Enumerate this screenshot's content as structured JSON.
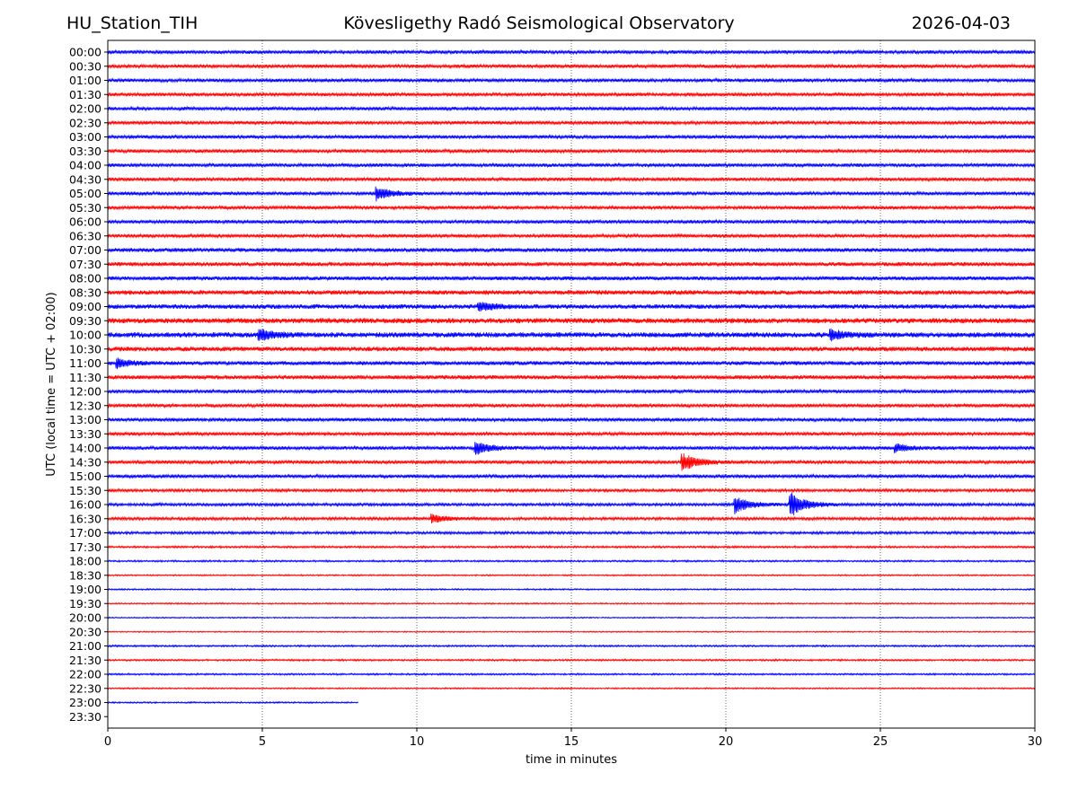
{
  "header": {
    "station": "HU_Station_TIH",
    "observatory": "Kövesligethy Radó Seismological Observatory",
    "date": "2026-04-03"
  },
  "chart_data": {
    "type": "line",
    "title": "Kövesligethy Radó Seismological Observatory",
    "xlabel": "time in minutes",
    "ylabel": "UTC (local time = UTC + 02:00)",
    "xlim": [
      0,
      30
    ],
    "xticks": [
      0,
      5,
      10,
      15,
      20,
      25,
      30
    ],
    "grid": "vertical dotted lines at x ticks",
    "series_colors": [
      "#0000ff",
      "#ff0000"
    ],
    "rows": [
      "00:00",
      "00:30",
      "01:00",
      "01:30",
      "02:00",
      "02:30",
      "03:00",
      "03:30",
      "04:00",
      "04:30",
      "05:00",
      "05:30",
      "06:00",
      "06:30",
      "07:00",
      "07:30",
      "08:00",
      "08:30",
      "09:00",
      "09:30",
      "10:00",
      "10:30",
      "11:00",
      "11:30",
      "12:00",
      "12:30",
      "13:00",
      "13:30",
      "14:00",
      "14:30",
      "15:00",
      "15:30",
      "16:00",
      "16:30",
      "17:00",
      "17:30",
      "18:00",
      "18:30",
      "19:00",
      "19:30",
      "20:00",
      "20:30",
      "21:00",
      "21:30",
      "22:00",
      "22:30",
      "23:00",
      "23:30"
    ],
    "trace_end_minutes": [
      30,
      30,
      30,
      30,
      30,
      30,
      30,
      30,
      30,
      30,
      30,
      30,
      30,
      30,
      30,
      30,
      30,
      30,
      30,
      30,
      30,
      30,
      30,
      30,
      30,
      30,
      30,
      30,
      30,
      30,
      30,
      30,
      30,
      30,
      30,
      30,
      30,
      30,
      30,
      30,
      30,
      30,
      30,
      30,
      30,
      30,
      8.1,
      0
    ],
    "noise_level": [
      0.6,
      0.6,
      0.6,
      0.6,
      0.6,
      0.6,
      0.6,
      0.6,
      0.6,
      0.6,
      0.6,
      0.6,
      0.6,
      0.6,
      0.7,
      0.7,
      0.7,
      0.8,
      0.8,
      0.9,
      0.9,
      0.8,
      0.7,
      0.7,
      0.6,
      0.6,
      0.6,
      0.6,
      0.6,
      0.6,
      0.6,
      0.5,
      0.5,
      0.5,
      0.45,
      0.35,
      0.3,
      0.25,
      0.25,
      0.25,
      0.2,
      0.2,
      0.3,
      0.3,
      0.3,
      0.25,
      0.25,
      0
    ],
    "events": [
      {
        "row": "05:00",
        "minute": 8.7,
        "amplitude": 2.2
      },
      {
        "row": "09:00",
        "minute": 12.0,
        "amplitude": 1.6
      },
      {
        "row": "10:00",
        "minute": 4.9,
        "amplitude": 2.0
      },
      {
        "row": "10:00",
        "minute": 23.4,
        "amplitude": 1.8
      },
      {
        "row": "11:00",
        "minute": 0.3,
        "amplitude": 1.6
      },
      {
        "row": "14:00",
        "minute": 11.9,
        "amplitude": 2.2
      },
      {
        "row": "14:00",
        "minute": 25.5,
        "amplitude": 1.4
      },
      {
        "row": "14:30",
        "minute": 18.6,
        "amplitude": 3.2
      },
      {
        "row": "16:00",
        "minute": 20.3,
        "amplitude": 3.0
      },
      {
        "row": "16:00",
        "minute": 22.1,
        "amplitude": 4.5
      },
      {
        "row": "16:30",
        "minute": 10.5,
        "amplitude": 1.5
      }
    ]
  }
}
